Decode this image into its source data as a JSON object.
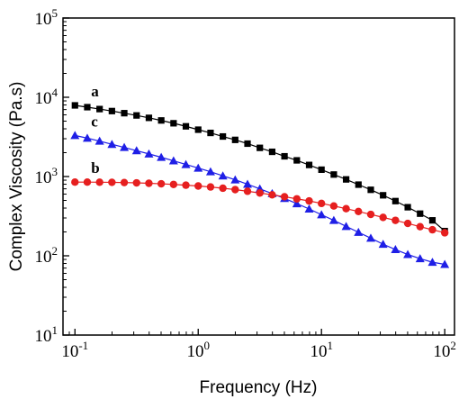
{
  "chart_data": {
    "type": "scatter",
    "title": "",
    "xlabel": "Frequency (Hz)",
    "ylabel": "Complex Viscosity (Pa.s)",
    "xscale": "log",
    "yscale": "log",
    "xlim": [
      0.08,
      120
    ],
    "ylim": [
      10,
      100000
    ],
    "grid": false,
    "x_ticks": [
      {
        "value": 0.1,
        "base": "10",
        "exp": "-1"
      },
      {
        "value": 1,
        "base": "10",
        "exp": "0"
      },
      {
        "value": 10,
        "base": "10",
        "exp": "1"
      },
      {
        "value": 100,
        "base": "10",
        "exp": "2"
      }
    ],
    "y_ticks": [
      {
        "value": 10,
        "base": "10",
        "exp": "1"
      },
      {
        "value": 100,
        "base": "10",
        "exp": "2"
      },
      {
        "value": 1000,
        "base": "10",
        "exp": "3"
      },
      {
        "value": 10000,
        "base": "10",
        "exp": "4"
      },
      {
        "value": 100000,
        "base": "10",
        "exp": "5"
      }
    ],
    "series": [
      {
        "label": "a",
        "marker": "square",
        "color": "#000000",
        "x": [
          0.1,
          0.1259,
          0.1585,
          0.1995,
          0.2512,
          0.3162,
          0.3981,
          0.5012,
          0.631,
          0.7943,
          1.0,
          1.259,
          1.585,
          1.995,
          2.512,
          3.162,
          3.981,
          5.012,
          6.31,
          7.943,
          10.0,
          12.59,
          15.85,
          19.95,
          25.12,
          31.62,
          39.81,
          50.12,
          63.1,
          79.43,
          100.0
        ],
        "y": [
          7900,
          7500,
          7100,
          6700,
          6300,
          5900,
          5500,
          5100,
          4700,
          4300,
          3900,
          3550,
          3200,
          2900,
          2600,
          2300,
          2050,
          1800,
          1600,
          1400,
          1220,
          1060,
          920,
          790,
          680,
          580,
          490,
          410,
          340,
          280,
          205
        ]
      },
      {
        "label": "c",
        "marker": "triangle",
        "color": "#1f1fe6",
        "x": [
          0.1,
          0.1259,
          0.1585,
          0.1995,
          0.2512,
          0.3162,
          0.3981,
          0.5012,
          0.631,
          0.7943,
          1.0,
          1.259,
          1.585,
          1.995,
          2.512,
          3.162,
          3.981,
          5.012,
          6.31,
          7.943,
          10.0,
          12.59,
          15.85,
          19.95,
          25.12,
          31.62,
          39.81,
          50.12,
          63.1,
          79.43,
          100.0
        ],
        "y": [
          3300,
          3050,
          2800,
          2550,
          2330,
          2120,
          1930,
          1750,
          1580,
          1420,
          1280,
          1150,
          1020,
          910,
          800,
          700,
          610,
          530,
          455,
          390,
          330,
          280,
          235,
          198,
          167,
          140,
          120,
          104,
          92,
          83,
          78
        ]
      },
      {
        "label": "b",
        "marker": "circle",
        "color": "#e61f1f",
        "x": [
          0.1,
          0.1259,
          0.1585,
          0.1995,
          0.2512,
          0.3162,
          0.3981,
          0.5012,
          0.631,
          0.7943,
          1.0,
          1.259,
          1.585,
          1.995,
          2.512,
          3.162,
          3.981,
          5.012,
          6.31,
          7.943,
          10.0,
          12.59,
          15.85,
          19.95,
          25.12,
          31.62,
          39.81,
          50.12,
          63.1,
          79.43,
          100.0
        ],
        "y": [
          850,
          850,
          848,
          845,
          840,
          832,
          822,
          810,
          795,
          778,
          760,
          738,
          712,
          684,
          652,
          620,
          588,
          556,
          523,
          492,
          458,
          425,
          393,
          362,
          333,
          305,
          280,
          256,
          233,
          213,
          195
        ]
      }
    ]
  }
}
